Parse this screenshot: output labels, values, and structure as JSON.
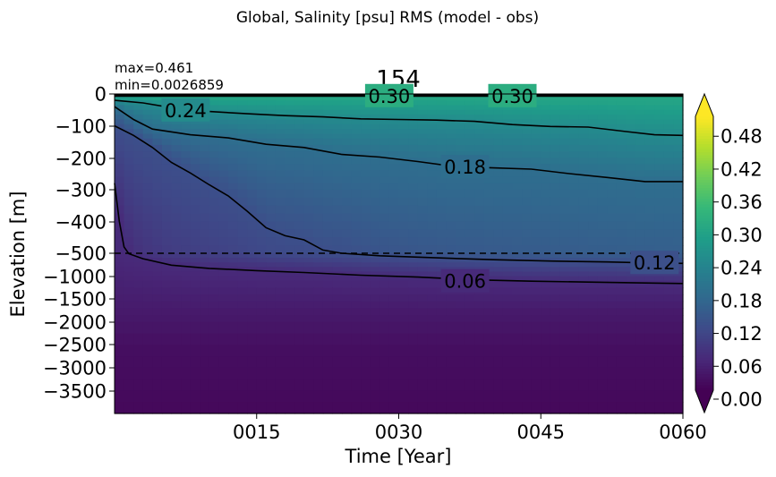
{
  "figure": {
    "suptitle": "Global, Salinity [psu] RMS (model - obs)",
    "title": "154",
    "max_text": "max=0.461",
    "min_text": "min=0.0026859"
  },
  "chart_data": {
    "type": "heatmap",
    "title": "154",
    "xlabel": "Time [Year]",
    "ylabel": "Elevation [m]",
    "x_ticks": [
      "0015",
      "0030",
      "0045",
      "0060"
    ],
    "x_range": [
      0,
      60
    ],
    "y_ticks_upper": [
      "0",
      "−100",
      "−200",
      "−300",
      "−400",
      "−500"
    ],
    "y_ticks_lower": [
      "−1000",
      "−1500",
      "−2000",
      "−2500",
      "−3000",
      "−3500"
    ],
    "y_break": -500,
    "y_upper_range": [
      0,
      -500
    ],
    "y_lower_range": [
      -500,
      -4000
    ],
    "colorbar": {
      "colormap": "viridis",
      "range": [
        0.0,
        0.5
      ],
      "ticks": [
        "0.00",
        "0.06",
        "0.12",
        "0.18",
        "0.24",
        "0.30",
        "0.36",
        "0.42",
        "0.48"
      ],
      "extend": "both"
    },
    "contour_levels": [
      0.06,
      0.12,
      0.18,
      0.24,
      0.3
    ],
    "contour_labels": [
      {
        "text": "0.30",
        "x": 29,
        "y": -5
      },
      {
        "text": "0.30",
        "x": 42,
        "y": -5
      },
      {
        "text": "0.24",
        "x": 7.5,
        "y": -50
      },
      {
        "text": "0.18",
        "x": 37,
        "y": -228
      },
      {
        "text": "0.12",
        "x": 57,
        "y": -700
      },
      {
        "text": "0.06",
        "x": 37,
        "y": -1100
      }
    ],
    "contours": [
      {
        "level": 0.3,
        "points": [
          [
            0,
            -5
          ],
          [
            60,
            -5
          ]
        ]
      },
      {
        "level": 0.24,
        "points": [
          [
            0,
            -20
          ],
          [
            3,
            -28
          ],
          [
            7,
            -48
          ],
          [
            10,
            -55
          ],
          [
            14,
            -62
          ],
          [
            18,
            -68
          ],
          [
            22,
            -72
          ],
          [
            26,
            -78
          ],
          [
            30,
            -80
          ],
          [
            34,
            -82
          ],
          [
            38,
            -86
          ],
          [
            42,
            -96
          ],
          [
            46,
            -102
          ],
          [
            50,
            -104
          ],
          [
            54,
            -118
          ],
          [
            57,
            -128
          ],
          [
            60,
            -130
          ]
        ]
      },
      {
        "level": 0.18,
        "points": [
          [
            0,
            -40
          ],
          [
            2,
            -80
          ],
          [
            4,
            -110
          ],
          [
            8,
            -128
          ],
          [
            12,
            -138
          ],
          [
            16,
            -158
          ],
          [
            20,
            -168
          ],
          [
            24,
            -190
          ],
          [
            28,
            -198
          ],
          [
            32,
            -212
          ],
          [
            36,
            -228
          ],
          [
            40,
            -232
          ],
          [
            44,
            -236
          ],
          [
            48,
            -250
          ],
          [
            52,
            -262
          ],
          [
            56,
            -275
          ],
          [
            60,
            -275
          ]
        ]
      },
      {
        "level": 0.12,
        "points": [
          [
            0,
            -100
          ],
          [
            2,
            -130
          ],
          [
            4,
            -168
          ],
          [
            6,
            -215
          ],
          [
            8,
            -248
          ],
          [
            10,
            -285
          ],
          [
            12,
            -320
          ],
          [
            14,
            -368
          ],
          [
            16,
            -420
          ],
          [
            18,
            -445
          ],
          [
            20,
            -458
          ],
          [
            22,
            -490
          ],
          [
            24,
            -500
          ],
          [
            28,
            -555
          ],
          [
            34,
            -600
          ],
          [
            40,
            -640
          ],
          [
            46,
            -670
          ],
          [
            52,
            -690
          ],
          [
            56,
            -710
          ],
          [
            60,
            -720
          ]
        ]
      },
      {
        "level": 0.06,
        "points": [
          [
            0,
            -280
          ],
          [
            0.5,
            -400
          ],
          [
            1,
            -480
          ],
          [
            1.5,
            -510
          ],
          [
            3,
            -620
          ],
          [
            6,
            -760
          ],
          [
            10,
            -830
          ],
          [
            15,
            -880
          ],
          [
            20,
            -920
          ],
          [
            26,
            -980
          ],
          [
            32,
            -1020
          ],
          [
            38,
            -1080
          ],
          [
            44,
            -1110
          ],
          [
            50,
            -1130
          ],
          [
            56,
            -1150
          ],
          [
            60,
            -1160
          ]
        ]
      }
    ]
  }
}
